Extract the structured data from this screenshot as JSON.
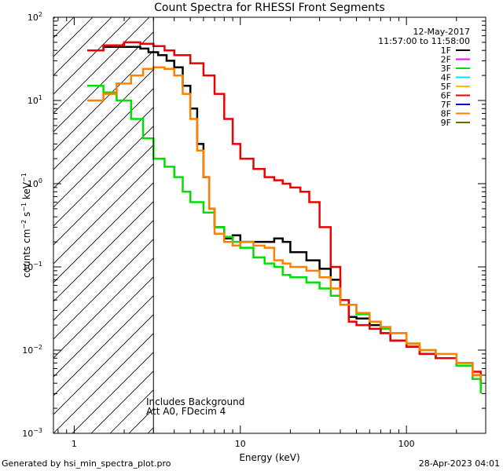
{
  "chart_data": {
    "type": "line",
    "title": "Count Spectra for RHESSI Front Segments",
    "xlabel": "Energy (keV)",
    "ylabel_base": "counts cm",
    "ylabel_exp1": "−2",
    "ylabel_mid": " s",
    "ylabel_exp2": "−1",
    "ylabel_unit": " keV",
    "ylabel_exp3": "−1",
    "x_scale": "log",
    "y_scale": "log",
    "xlim": [
      0.75,
      300
    ],
    "ylim": [
      0.001,
      100
    ],
    "x_tick_labels": [
      {
        "value": 1,
        "label": "1"
      },
      {
        "value": 10,
        "label": "10"
      },
      {
        "value": 100,
        "label": "100"
      }
    ],
    "y_tick_labels": [
      {
        "value": 0.001,
        "base": "10",
        "exp": "−3"
      },
      {
        "value": 0.01,
        "base": "10",
        "exp": "−2"
      },
      {
        "value": 0.1,
        "base": "10",
        "exp": "−1"
      },
      {
        "value": 1,
        "base": "10",
        "exp": "0"
      },
      {
        "value": 10,
        "base": "10",
        "exp": "1"
      },
      {
        "value": 100,
        "base": "10",
        "exp": "2"
      }
    ],
    "date": "12-May-2017",
    "time_range": "11:57:00 to 11:58:00",
    "legend": [
      {
        "name": "1F",
        "color": "#000000"
      },
      {
        "name": "2F",
        "color": "#ff00ff"
      },
      {
        "name": "3F",
        "color": "#00e000"
      },
      {
        "name": "4F",
        "color": "#00e5ff"
      },
      {
        "name": "5F",
        "color": "#ffc000"
      },
      {
        "name": "6F",
        "color": "#ee0000"
      },
      {
        "name": "7F",
        "color": "#0000dd"
      },
      {
        "name": "8F",
        "color": "#ff8000"
      },
      {
        "name": "9F",
        "color": "#6b6b00"
      }
    ],
    "threshold_energy": 3,
    "annotation_1": "Includes Background",
    "annotation_2": "Att A0, FDecim 4",
    "series": [
      {
        "name": "1F",
        "color": "#000000",
        "points": [
          [
            1.2,
            40
          ],
          [
            1.5,
            44
          ],
          [
            2,
            44
          ],
          [
            2.5,
            42
          ],
          [
            2.8,
            38
          ],
          [
            3.2,
            35
          ],
          [
            3.6,
            30
          ],
          [
            4,
            25
          ],
          [
            4.5,
            15
          ],
          [
            5,
            8
          ],
          [
            5.5,
            3
          ],
          [
            6,
            1.2
          ],
          [
            6.5,
            0.5
          ],
          [
            7,
            0.3
          ],
          [
            8,
            0.22
          ],
          [
            9,
            0.24
          ],
          [
            10,
            0.2
          ],
          [
            12,
            0.2
          ],
          [
            14,
            0.2
          ],
          [
            16,
            0.22
          ],
          [
            18,
            0.2
          ],
          [
            20,
            0.15
          ],
          [
            25,
            0.12
          ],
          [
            30,
            0.095
          ],
          [
            35,
            0.07
          ],
          [
            40,
            0.04
          ],
          [
            45,
            0.025
          ],
          [
            50,
            0.024
          ],
          [
            60,
            0.02
          ],
          [
            70,
            0.016
          ],
          [
            80,
            0.013
          ],
          [
            100,
            0.011
          ],
          [
            120,
            0.009
          ],
          [
            150,
            0.008
          ],
          [
            200,
            0.0065
          ],
          [
            250,
            0.005
          ],
          [
            280,
            0.004
          ]
        ]
      },
      {
        "name": "3F",
        "color": "#00e000",
        "points": [
          [
            1.2,
            15
          ],
          [
            1.5,
            12.5
          ],
          [
            1.8,
            10
          ],
          [
            2.2,
            6
          ],
          [
            2.6,
            3.5
          ],
          [
            3,
            2
          ],
          [
            3.5,
            1.6
          ],
          [
            4,
            1.2
          ],
          [
            4.5,
            0.8
          ],
          [
            5,
            0.6
          ],
          [
            6,
            0.45
          ],
          [
            7,
            0.3
          ],
          [
            8,
            0.23
          ],
          [
            9,
            0.2
          ],
          [
            10,
            0.17
          ],
          [
            12,
            0.13
          ],
          [
            14,
            0.11
          ],
          [
            16,
            0.1
          ],
          [
            18,
            0.08
          ],
          [
            20,
            0.075
          ],
          [
            25,
            0.065
          ],
          [
            30,
            0.055
          ],
          [
            35,
            0.045
          ],
          [
            40,
            0.035
          ],
          [
            50,
            0.027
          ],
          [
            60,
            0.022
          ],
          [
            70,
            0.018
          ],
          [
            80,
            0.016
          ],
          [
            100,
            0.012
          ],
          [
            120,
            0.01
          ],
          [
            150,
            0.008
          ],
          [
            200,
            0.0065
          ],
          [
            250,
            0.0045
          ],
          [
            280,
            0.003
          ]
        ]
      },
      {
        "name": "6F",
        "color": "#ee0000",
        "points": [
          [
            1.2,
            40
          ],
          [
            1.5,
            46
          ],
          [
            2,
            50
          ],
          [
            2.5,
            48
          ],
          [
            3,
            45
          ],
          [
            3.5,
            40
          ],
          [
            4,
            35
          ],
          [
            5,
            28
          ],
          [
            6,
            20
          ],
          [
            7,
            12
          ],
          [
            8,
            6
          ],
          [
            9,
            3
          ],
          [
            10,
            2
          ],
          [
            12,
            1.5
          ],
          [
            14,
            1.2
          ],
          [
            16,
            1.1
          ],
          [
            18,
            1
          ],
          [
            20,
            0.9
          ],
          [
            23,
            0.8
          ],
          [
            26,
            0.6
          ],
          [
            30,
            0.3
          ],
          [
            35,
            0.1
          ],
          [
            40,
            0.04
          ],
          [
            45,
            0.022
          ],
          [
            50,
            0.02
          ],
          [
            60,
            0.018
          ],
          [
            70,
            0.016
          ],
          [
            80,
            0.013
          ],
          [
            100,
            0.011
          ],
          [
            120,
            0.009
          ],
          [
            150,
            0.008
          ],
          [
            200,
            0.007
          ],
          [
            250,
            0.0055
          ],
          [
            280,
            0.0045
          ]
        ]
      },
      {
        "name": "8F",
        "color": "#ff8000",
        "points": [
          [
            1.2,
            10
          ],
          [
            1.5,
            12
          ],
          [
            1.8,
            16
          ],
          [
            2.2,
            20
          ],
          [
            2.6,
            24
          ],
          [
            3,
            25
          ],
          [
            3.5,
            24
          ],
          [
            4,
            20
          ],
          [
            4.5,
            12
          ],
          [
            5,
            6
          ],
          [
            5.5,
            2.5
          ],
          [
            6,
            1.2
          ],
          [
            6.5,
            0.5
          ],
          [
            7,
            0.25
          ],
          [
            8,
            0.2
          ],
          [
            9,
            0.18
          ],
          [
            10,
            0.2
          ],
          [
            12,
            0.18
          ],
          [
            14,
            0.17
          ],
          [
            16,
            0.12
          ],
          [
            18,
            0.11
          ],
          [
            20,
            0.1
          ],
          [
            25,
            0.09
          ],
          [
            30,
            0.075
          ],
          [
            35,
            0.055
          ],
          [
            40,
            0.035
          ],
          [
            50,
            0.028
          ],
          [
            60,
            0.022
          ],
          [
            70,
            0.019
          ],
          [
            80,
            0.016
          ],
          [
            100,
            0.012
          ],
          [
            120,
            0.01
          ],
          [
            150,
            0.009
          ],
          [
            200,
            0.007
          ],
          [
            250,
            0.005
          ],
          [
            280,
            0.0045
          ]
        ]
      }
    ]
  }
}
